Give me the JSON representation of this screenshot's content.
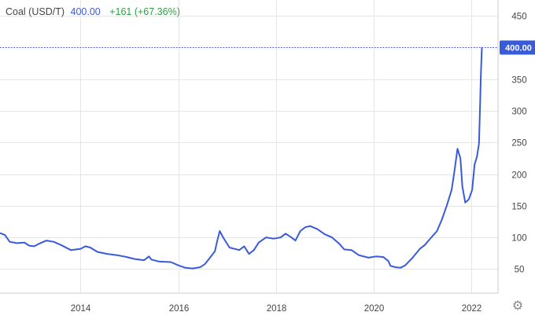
{
  "header": {
    "name": "Coal (USD/T)",
    "price": "400.00",
    "change": "+161 (+67.36%)"
  },
  "colors": {
    "line": "#3a5bd9",
    "price": "#3a5bd9",
    "change": "#2ea043",
    "grid": "#e6e6e6",
    "last_label_bg": "#3a5bd9"
  },
  "settings_icon": "gear-icon",
  "chart_data": {
    "type": "line",
    "title": "Coal (USD/T)",
    "xlabel": "",
    "ylabel": "",
    "x_ticks": [
      "2014",
      "2016",
      "2018",
      "2020",
      "2022"
    ],
    "y_ticks": [
      50,
      100,
      150,
      200,
      250,
      300,
      350,
      400,
      450
    ],
    "xlim": [
      2012.35,
      2022.55
    ],
    "ylim": [
      12,
      475
    ],
    "grid": true,
    "last_value_label": "400.00",
    "series": [
      {
        "values": [
          [
            2012.35,
            107
          ],
          [
            2012.45,
            104
          ],
          [
            2012.55,
            93
          ],
          [
            2012.7,
            91
          ],
          [
            2012.85,
            92
          ],
          [
            2012.95,
            87
          ],
          [
            2013.05,
            86
          ],
          [
            2013.15,
            90
          ],
          [
            2013.3,
            95
          ],
          [
            2013.45,
            93
          ],
          [
            2013.6,
            88
          ],
          [
            2013.8,
            80
          ],
          [
            2014.0,
            82
          ],
          [
            2014.1,
            86
          ],
          [
            2014.2,
            84
          ],
          [
            2014.35,
            77
          ],
          [
            2014.55,
            74
          ],
          [
            2014.75,
            72
          ],
          [
            2014.95,
            69
          ],
          [
            2015.1,
            66
          ],
          [
            2015.3,
            64
          ],
          [
            2015.4,
            70
          ],
          [
            2015.45,
            65
          ],
          [
            2015.6,
            62
          ],
          [
            2015.85,
            61
          ],
          [
            2016.0,
            56
          ],
          [
            2016.15,
            52
          ],
          [
            2016.3,
            51
          ],
          [
            2016.45,
            53
          ],
          [
            2016.55,
            58
          ],
          [
            2016.65,
            68
          ],
          [
            2016.75,
            78
          ],
          [
            2016.8,
            95
          ],
          [
            2016.85,
            110
          ],
          [
            2016.92,
            100
          ],
          [
            2017.05,
            84
          ],
          [
            2017.25,
            80
          ],
          [
            2017.35,
            86
          ],
          [
            2017.45,
            74
          ],
          [
            2017.55,
            80
          ],
          [
            2017.65,
            92
          ],
          [
            2017.8,
            100
          ],
          [
            2017.95,
            98
          ],
          [
            2018.1,
            100
          ],
          [
            2018.2,
            106
          ],
          [
            2018.3,
            101
          ],
          [
            2018.4,
            95
          ],
          [
            2018.5,
            110
          ],
          [
            2018.6,
            116
          ],
          [
            2018.7,
            118
          ],
          [
            2018.85,
            113
          ],
          [
            2019.0,
            105
          ],
          [
            2019.15,
            100
          ],
          [
            2019.3,
            90
          ],
          [
            2019.4,
            81
          ],
          [
            2019.55,
            80
          ],
          [
            2019.7,
            72
          ],
          [
            2019.9,
            68
          ],
          [
            2020.05,
            70
          ],
          [
            2020.2,
            69
          ],
          [
            2020.3,
            63
          ],
          [
            2020.35,
            55
          ],
          [
            2020.45,
            53
          ],
          [
            2020.55,
            52
          ],
          [
            2020.65,
            56
          ],
          [
            2020.8,
            68
          ],
          [
            2020.95,
            82
          ],
          [
            2021.05,
            88
          ],
          [
            2021.15,
            97
          ],
          [
            2021.3,
            110
          ],
          [
            2021.4,
            128
          ],
          [
            2021.5,
            150
          ],
          [
            2021.6,
            175
          ],
          [
            2021.65,
            200
          ],
          [
            2021.72,
            240
          ],
          [
            2021.78,
            225
          ],
          [
            2021.82,
            180
          ],
          [
            2021.88,
            155
          ],
          [
            2021.95,
            160
          ],
          [
            2022.02,
            175
          ],
          [
            2022.07,
            215
          ],
          [
            2022.12,
            228
          ],
          [
            2022.16,
            248
          ],
          [
            2022.18,
            300
          ],
          [
            2022.2,
            360
          ],
          [
            2022.22,
            400
          ]
        ]
      }
    ]
  }
}
